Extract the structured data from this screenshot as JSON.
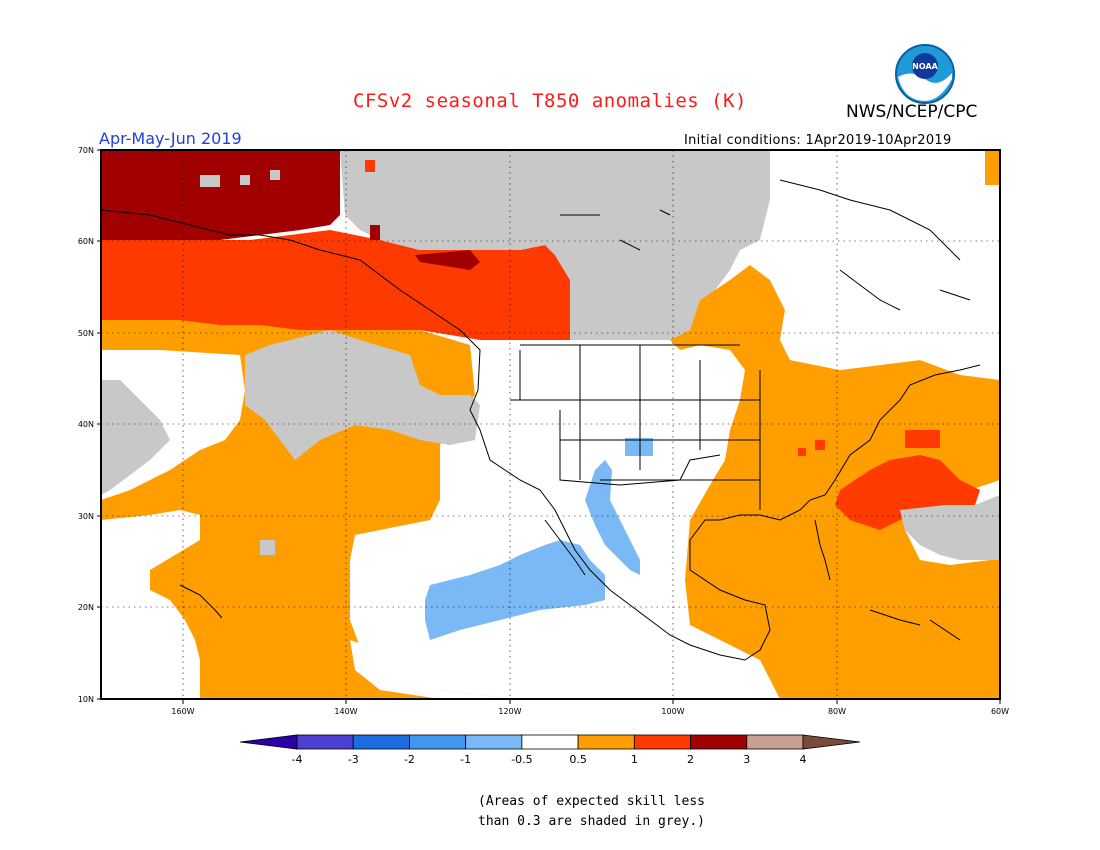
{
  "title": "CFSv2 seasonal T850 anomalies (K)",
  "agency": "NWS/NCEP/CPC",
  "logo_text": "NOAA",
  "season": "Apr-May-Jun 2019",
  "initial_conditions": "Initial conditions: 1Apr2019-10Apr2019",
  "lat_labels": [
    "70N",
    "60N",
    "50N",
    "40N",
    "30N",
    "20N",
    "10N"
  ],
  "lon_labels": [
    "160W",
    "140W",
    "120W",
    "100W",
    "80W",
    "60W"
  ],
  "colorbar": {
    "colors": [
      "#2a00a8",
      "#4b3fd6",
      "#1e6de0",
      "#3f97f0",
      "#7ab9f6",
      "#ffffff",
      "#ff9e00",
      "#ff3a00",
      "#a00000",
      "#c8a090",
      "#7a4a3a"
    ],
    "labels": [
      "-4",
      "-3",
      "-2",
      "-1",
      "-0.5",
      "0.5",
      "1",
      "2",
      "3",
      "4"
    ]
  },
  "low_skill_color": "#c8c8c8",
  "note_line1": "(Areas of expected skill less",
  "note_line2": "than 0.3 are shaded in grey.)"
}
